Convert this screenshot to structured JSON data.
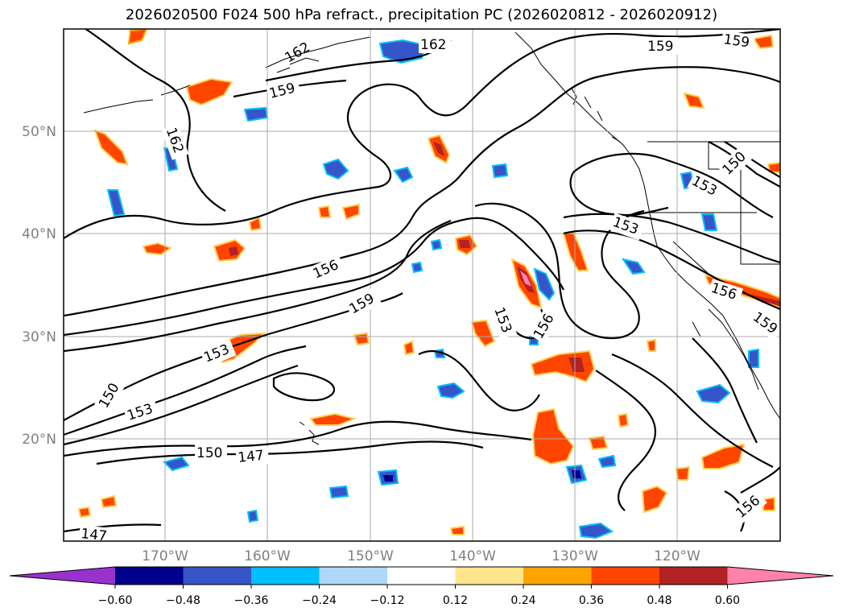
{
  "title": "2026020500 F024 500 hPa refract., precipitation PC (2026020812 - 2026020912)",
  "latitude_labels": [
    "50°N",
    "40°N",
    "30°N",
    "20°N"
  ],
  "longitude_labels": [
    "170°W",
    "160°W",
    "150°W",
    "140°W",
    "130°W",
    "120°W"
  ],
  "contour_labels": [
    "162",
    "162",
    "159",
    "159",
    "159",
    "162",
    "156",
    "159",
    "153",
    "153",
    "150",
    "153",
    "156",
    "150",
    "147",
    "147",
    "150",
    "153",
    "153",
    "156",
    "159",
    "156"
  ],
  "colorbar": {
    "tick_labels": [
      "−0.60",
      "−0.48",
      "−0.36",
      "−0.24",
      "−0.12",
      "0.12",
      "0.24",
      "0.36",
      "0.48",
      "0.60"
    ],
    "colors": [
      "#9932cc",
      "#00008b",
      "#3655c8",
      "#00bfff",
      "#add8fa",
      "#ffffff",
      "#ffe68c",
      "#ffa500",
      "#ff4500",
      "#b22222",
      "#ff82ab"
    ]
  },
  "colors": {
    "contour": "#000000",
    "coast": "#000000",
    "grid": "#a9a9a9",
    "axis_label": "#808080"
  }
}
